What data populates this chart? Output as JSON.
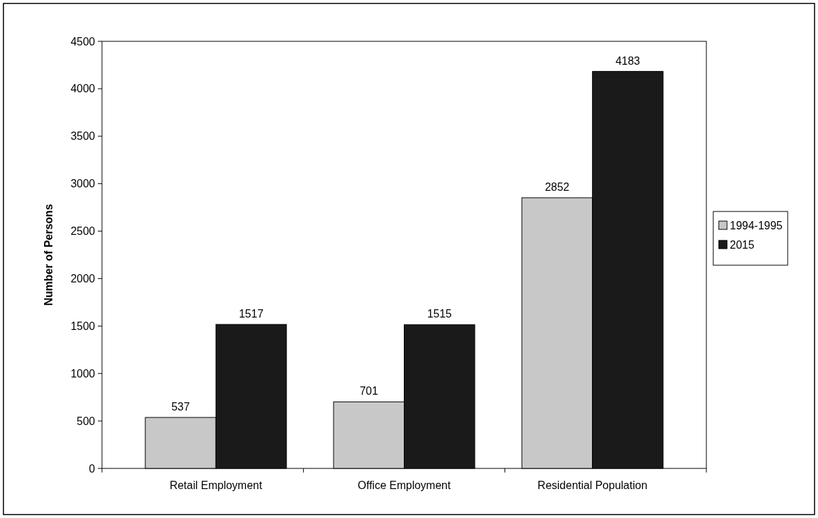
{
  "chart_data": {
    "type": "bar",
    "ylabel": "Number of Persons",
    "categories": [
      "Retail Employment",
      "Office Employment",
      "Residential Population"
    ],
    "series": [
      {
        "name": "1994-1995",
        "color": "#c8c8c8",
        "values": [
          537,
          701,
          2852
        ]
      },
      {
        "name": "2015",
        "color": "#1a1a1a",
        "values": [
          1517,
          1515,
          4183
        ]
      }
    ],
    "ylim": [
      0,
      4500
    ],
    "yticks": [
      0,
      500,
      1000,
      1500,
      2000,
      2500,
      3000,
      3500,
      4000,
      4500
    ],
    "grid": false,
    "legend": "right",
    "data_labels": true
  }
}
